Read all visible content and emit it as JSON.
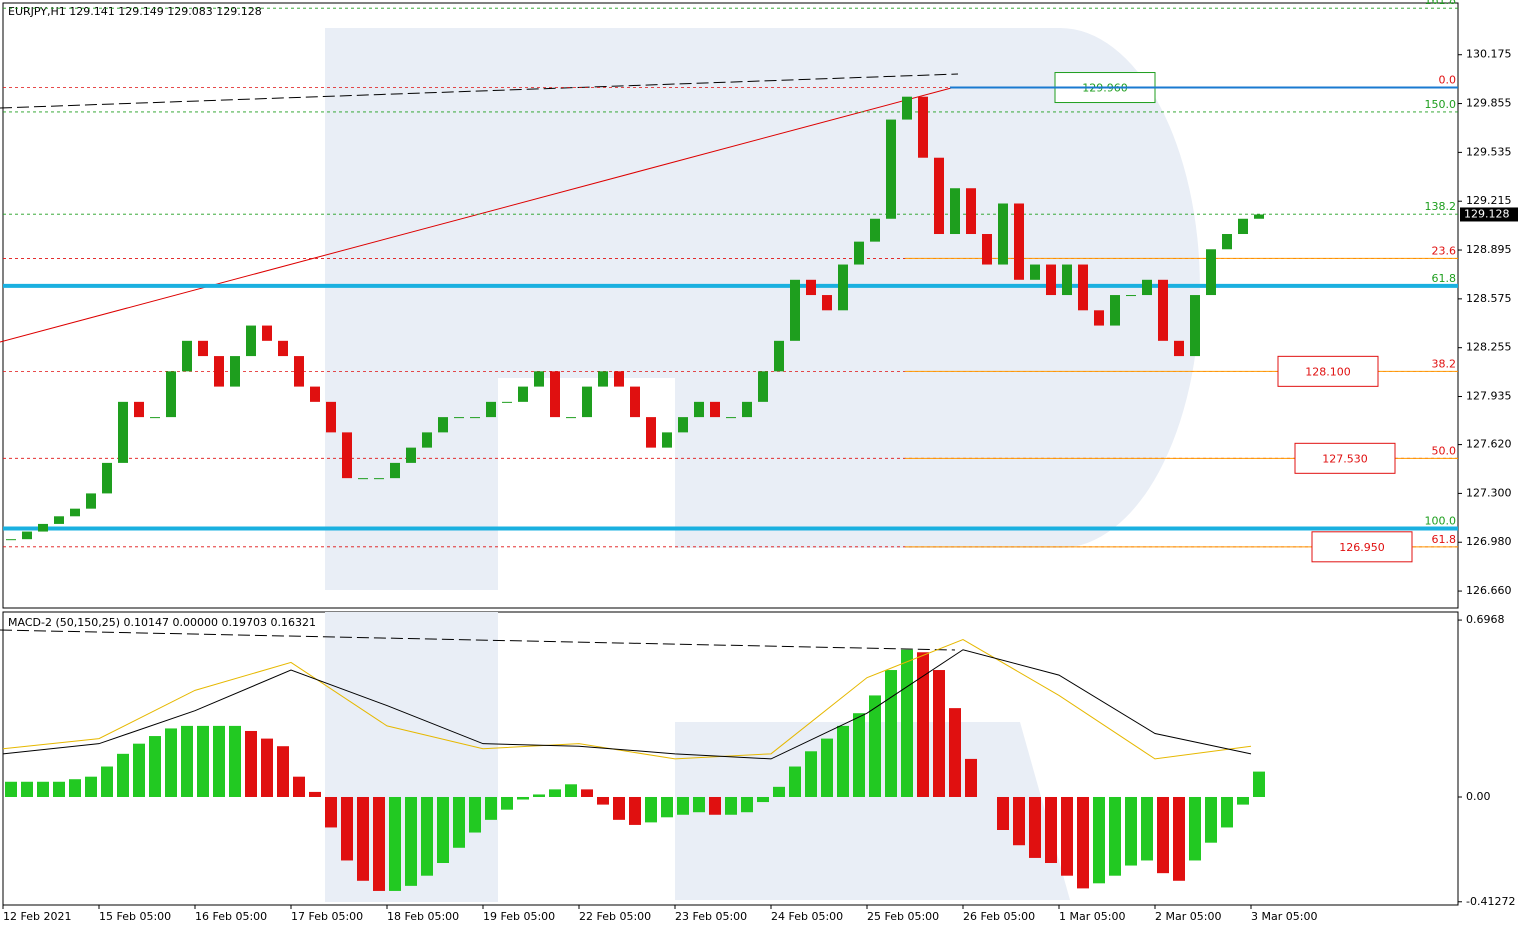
{
  "chart_data": [
    {
      "type": "candlestick",
      "title": "EURJPY,H1  129.141 129.149 129.083 129.128",
      "up_color": "#1e9e1e",
      "down_color": "#e01010",
      "values": [
        127.0,
        127.05,
        127.1,
        127.15,
        127.2,
        127.3,
        127.5,
        127.9,
        127.8,
        127.8,
        128.1,
        128.3,
        128.2,
        128.0,
        128.2,
        128.4,
        128.3,
        128.2,
        128.0,
        127.9,
        127.7,
        127.4,
        127.4,
        127.4,
        127.5,
        127.6,
        127.7,
        127.8,
        127.8,
        127.8,
        127.9,
        127.9,
        128.0,
        128.1,
        127.8,
        127.8,
        128.0,
        128.1,
        128.0,
        127.8,
        127.6,
        127.7,
        127.8,
        127.9,
        127.8,
        127.8,
        127.9,
        128.1,
        128.3,
        128.7,
        128.6,
        128.5,
        128.8,
        128.95,
        129.1,
        129.75,
        129.9,
        129.5,
        129.0,
        129.3,
        129.0,
        128.8,
        129.2,
        128.7,
        128.8,
        128.6,
        128.8,
        128.5,
        128.4,
        128.6,
        128.6,
        128.7,
        128.3,
        128.2,
        128.6,
        128.9,
        129.0,
        129.1,
        129.128
      ],
      "ylim": [
        126.549,
        130.514
      ],
      "yticks": [
        130.175,
        129.855,
        129.535,
        129.215,
        128.895,
        128.575,
        128.255,
        127.935,
        {
          "value": 127.62,
          "label": "127.620"
        },
        {
          "value": 127.3,
          "label": "127.300"
        },
        {
          "value": 126.98,
          "label": "126.980"
        },
        {
          "value": 126.66,
          "label": "126.660"
        }
      ],
      "last_price": 129.128,
      "fib_levels": [
        {
          "label": "161.8",
          "value": 130.48,
          "color": "#1e9e1e"
        },
        {
          "label": "0.0",
          "value": 129.96,
          "color": "#e01010"
        },
        {
          "label": "150.0",
          "value": 129.8,
          "color": "#1e9e1e"
        },
        {
          "label": "138.2",
          "value": 129.13,
          "color": "#1e9e1e"
        },
        {
          "label": "23.6",
          "value": 128.84,
          "color": "#e01010"
        },
        {
          "label": "61.8",
          "value": 128.66,
          "color": "#1e9e1e"
        },
        {
          "label": "38.2",
          "value": 128.1,
          "color": "#e01010"
        },
        {
          "label": "50.0",
          "value": 127.53,
          "color": "#e01010"
        },
        {
          "label": "100.0",
          "value": 127.07,
          "color": "#1e9e1e"
        },
        {
          "label": "61.8",
          "value": 126.95,
          "color": "#e01010"
        }
      ],
      "annotations": [
        {
          "text": "129.960",
          "value": 129.96,
          "color": "#1e9e1e"
        },
        {
          "text": "128.100",
          "value": 128.1,
          "color": "#e01010"
        },
        {
          "text": "127.530",
          "value": 127.53,
          "color": "#e01010"
        },
        {
          "text": "126.950",
          "value": 126.95,
          "color": "#e01010"
        }
      ]
    },
    {
      "type": "macd",
      "title": "MACD-2 (50,150,25) 0.10147 0.00000 0.19703 0.16321",
      "categories": [
        "12 Feb 2021",
        "15 Feb 05:00",
        "16 Feb 05:00",
        "17 Feb 05:00",
        "18 Feb 05:00",
        "19 Feb 05:00",
        "22 Feb 05:00",
        "23 Feb 05:00",
        "24 Feb 05:00",
        "25 Feb 05:00",
        "26 Feb 05:00",
        "1 Mar 05:00",
        "2 Mar 05:00",
        "3 Mar 05:00"
      ],
      "histogram": [
        0.06,
        0.06,
        0.06,
        0.06,
        0.07,
        0.08,
        0.12,
        0.17,
        0.21,
        0.24,
        0.27,
        0.28,
        0.28,
        0.28,
        0.28,
        0.26,
        0.23,
        0.2,
        0.08,
        0.02,
        -0.12,
        -0.25,
        -0.33,
        -0.37,
        -0.37,
        -0.35,
        -0.31,
        -0.26,
        -0.2,
        -0.14,
        -0.09,
        -0.05,
        -0.01,
        0.01,
        0.03,
        0.05,
        0.03,
        -0.03,
        -0.09,
        -0.11,
        -0.1,
        -0.08,
        -0.07,
        -0.06,
        -0.07,
        -0.07,
        -0.06,
        -0.02,
        0.04,
        0.12,
        0.18,
        0.23,
        0.28,
        0.33,
        0.4,
        0.5,
        0.58,
        0.57,
        0.5,
        0.35,
        0.15,
        0.0,
        -0.13,
        -0.19,
        -0.24,
        -0.26,
        -0.31,
        -0.36,
        -0.34,
        -0.31,
        -0.27,
        -0.25,
        -0.3,
        -0.33,
        -0.25,
        -0.18,
        -0.12,
        -0.03,
        0.1
      ],
      "series": [
        {
          "color": "#e6b800",
          "values": [
            0.19,
            0.23,
            0.42,
            0.53,
            0.28,
            0.19,
            0.21,
            0.15,
            0.17,
            0.47,
            0.62,
            0.4,
            0.15,
            0.2
          ]
        },
        {
          "color": "#000000",
          "values": [
            0.17,
            0.21,
            0.34,
            0.5,
            0.36,
            0.21,
            0.2,
            0.17,
            0.15,
            0.33,
            0.58,
            0.48,
            0.25,
            0.17
          ]
        }
      ],
      "ylim": [
        -0.4254,
        0.7286
      ],
      "yticks": [
        0.6968,
        {
          "value": 0,
          "label": "0.00"
        },
        -0.41272
      ]
    }
  ]
}
